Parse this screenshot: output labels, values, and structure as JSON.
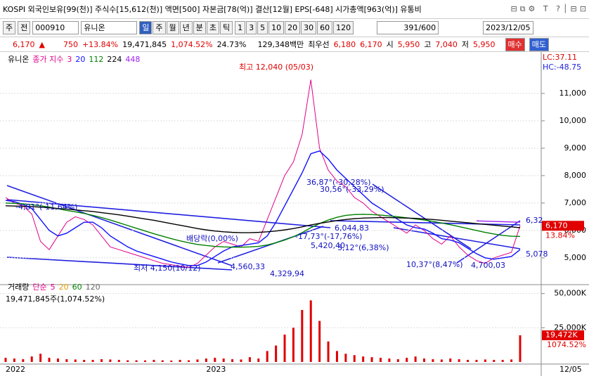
{
  "header": {
    "title": "KOSPI 외국인보유[99(천)] 주식수[15,612(천)] 액면[500] 자본금[78(억)] 결산[12월] EPS[-648] 시가총액[963(억)] 유통비"
  },
  "toolbar": {
    "kind": "주",
    "prev": "전",
    "code": "000910",
    "name": "유니온",
    "periods": [
      "일",
      "주",
      "월",
      "년",
      "분",
      "초",
      "틱"
    ],
    "nums": [
      "1",
      "3",
      "5",
      "10",
      "20",
      "30",
      "60",
      "120"
    ],
    "count": "391/600",
    "date": "2023/12/05"
  },
  "info": {
    "price": "6,170",
    "arrow": "▲",
    "change": "750",
    "pct": "+13.84%",
    "volume": "19,471,845",
    "vol_pct": "1,074.52%",
    "turnover": "24.73%",
    "amount": "129,348백만",
    "best_label": "최우선",
    "ask": "6,180",
    "bid": "6,170",
    "open_label": "시",
    "open": "5,950",
    "high_label": "고",
    "high": "7,040",
    "low_label": "저",
    "low": "5,950",
    "buy": "매수",
    "sell": "매도"
  },
  "chart_data": [
    {
      "type": "line",
      "title": "유니온",
      "legend_prefix": "종가 지수",
      "last_date": "12/05",
      "lc": "LC:37.11",
      "hc": "HC:-48.75",
      "current_label": "6,170",
      "current_pct": "13.84%",
      "categories": [
        "2022",
        null,
        null,
        null,
        null,
        null,
        null,
        null,
        null,
        null,
        null,
        null,
        null,
        null,
        null,
        null,
        null,
        null,
        null,
        null,
        null,
        null,
        null,
        "2023",
        null,
        null,
        null,
        null,
        null,
        null,
        null,
        null,
        null,
        null,
        null,
        null,
        null,
        null,
        null,
        null,
        null,
        null,
        null,
        null,
        null,
        null,
        null,
        null,
        null,
        null,
        null,
        null,
        null,
        null,
        null,
        null,
        null,
        null,
        null,
        null
      ],
      "series": [
        {
          "name": "3",
          "color": "#e0008a",
          "values": [
            7200,
            7000,
            6900,
            6600,
            5600,
            5300,
            5800,
            6300,
            6500,
            6400,
            6200,
            5800,
            5400,
            5300,
            5200,
            5100,
            5000,
            4900,
            4800,
            4750,
            4700,
            4650,
            4800,
            5100,
            5400,
            5600,
            5500,
            5400,
            5700,
            5600,
            6400,
            7200,
            8000,
            8500,
            9500,
            11500,
            9000,
            8200,
            7800,
            7600,
            7200,
            7000,
            6700,
            6500,
            6300,
            6100,
            5900,
            6200,
            6000,
            5700,
            5500,
            5800,
            5400,
            5100,
            4900,
            4800,
            5000,
            5100,
            5200,
            6170
          ]
        },
        {
          "name": "20",
          "color": "#1010ff",
          "values": [
            7100,
            7050,
            6950,
            6800,
            6400,
            6000,
            5800,
            5900,
            6100,
            6300,
            6300,
            6100,
            5800,
            5600,
            5400,
            5250,
            5150,
            5050,
            4950,
            4850,
            4780,
            4720,
            4720,
            4850,
            5050,
            5250,
            5400,
            5450,
            5500,
            5550,
            5800,
            6300,
            6900,
            7500,
            8100,
            8800,
            8900,
            8600,
            8200,
            7900,
            7600,
            7300,
            7000,
            6800,
            6600,
            6400,
            6200,
            6100,
            6050,
            5900,
            5700,
            5650,
            5550,
            5350,
            5150,
            5000,
            4950,
            5000,
            5050,
            5300
          ]
        },
        {
          "name": "112",
          "color": "#008000",
          "values": [
            7000,
            6990,
            6970,
            6940,
            6900,
            6850,
            6790,
            6730,
            6680,
            6620,
            6550,
            6470,
            6380,
            6280,
            6180,
            6080,
            5980,
            5880,
            5790,
            5700,
            5620,
            5550,
            5490,
            5450,
            5420,
            5400,
            5390,
            5390,
            5400,
            5420,
            5470,
            5550,
            5650,
            5770,
            5920,
            6100,
            6250,
            6380,
            6480,
            6550,
            6580,
            6590,
            6580,
            6560,
            6530,
            6500,
            6460,
            6420,
            6380,
            6330,
            6270,
            6210,
            6140,
            6070,
            6000,
            5930,
            5870,
            5820,
            5790,
            5780
          ]
        },
        {
          "name": "224",
          "color": "#000000",
          "values": [
            6900,
            6890,
            6880,
            6870,
            6850,
            6830,
            6800,
            6780,
            6750,
            6720,
            6690,
            6650,
            6610,
            6570,
            6520,
            6470,
            6420,
            6370,
            6310,
            6250,
            6190,
            6130,
            6070,
            6020,
            5980,
            5950,
            5930,
            5920,
            5920,
            5930,
            5950,
            5980,
            6020,
            6070,
            6130,
            6200,
            6260,
            6310,
            6360,
            6400,
            6430,
            6450,
            6460,
            6470,
            6470,
            6460,
            6450,
            6440,
            6420,
            6400,
            6370,
            6340,
            6310,
            6280,
            6250,
            6220,
            6190,
            6160,
            6130,
            6100
          ]
        },
        {
          "name": "448",
          "color": "#a020f0",
          "values": [
            null,
            null,
            null,
            null,
            null,
            null,
            null,
            null,
            null,
            null,
            null,
            null,
            null,
            null,
            null,
            null,
            null,
            null,
            null,
            null,
            null,
            null,
            null,
            null,
            null,
            null,
            null,
            null,
            null,
            null,
            null,
            null,
            null,
            null,
            null,
            null,
            null,
            null,
            null,
            null,
            null,
            null,
            null,
            null,
            null,
            null,
            null,
            null,
            null,
            null,
            null,
            null,
            null,
            null,
            6350,
            6340,
            6330,
            6320,
            6310,
            6300
          ]
        }
      ],
      "ylim": [
        4100,
        12100
      ],
      "yticks": [
        {
          "value": 5000,
          "label": "5,000"
        },
        {
          "value": 6000,
          "label": "6,000"
        },
        {
          "value": 7000,
          "label": "7,000"
        },
        {
          "value": 8000,
          "label": "8,000"
        },
        {
          "value": 9000,
          "label": "9,000"
        },
        {
          "value": 10000,
          "label": "10,000"
        },
        {
          "value": 11000,
          "label": "11,000"
        }
      ],
      "grid": true,
      "annotations": [
        "최고 12,040 (05/03)",
        "최저 4,150(10/12)",
        "4,560,33",
        "4,329,94",
        "5,420,40",
        "6,044,83",
        "-17,73°(-17,76%)",
        "3,12°(6,38%)",
        "36,87°(-30,28%)",
        "30,56°(-33,29%)",
        "-4,81°(-11,64%)",
        "배당락(0,00%)",
        "10,37°(8,47%)",
        "4,700,03",
        "6,32",
        "5,078"
      ]
    },
    {
      "type": "bar",
      "title": "거래량",
      "legend_prefix": "단순",
      "legend": [
        {
          "name": "5",
          "color": "#e0008a"
        },
        {
          "name": "20",
          "color": "#e0a000"
        },
        {
          "name": "60",
          "color": "#008000"
        },
        {
          "name": "120",
          "color": "#666666"
        }
      ],
      "subtitle": "19,471,845주(1,074.52%)",
      "current_label": "19,472K",
      "current_pct": "1074.52%",
      "color": "#e00000",
      "values": [
        3000,
        2500,
        2000,
        4000,
        6000,
        3000,
        2500,
        2000,
        1800,
        1500,
        1500,
        2000,
        1800,
        1500,
        1200,
        1200,
        1100,
        1500,
        1200,
        1000,
        1500,
        1200,
        1800,
        2500,
        3000,
        2500,
        2000,
        1800,
        3500,
        2500,
        8000,
        12000,
        20000,
        25000,
        38000,
        45000,
        30000,
        15000,
        8000,
        6000,
        5000,
        4000,
        3500,
        3000,
        2500,
        2000,
        3000,
        4000,
        2500,
        2000,
        1800,
        2500,
        2000,
        1500,
        1500,
        1800,
        1500,
        1500,
        1800,
        19472
      ],
      "ylim": [
        0,
        56000
      ],
      "yticks": [
        {
          "value": 25000,
          "label": "25,000K"
        },
        {
          "value": 50000,
          "label": "50,000K"
        }
      ]
    }
  ]
}
